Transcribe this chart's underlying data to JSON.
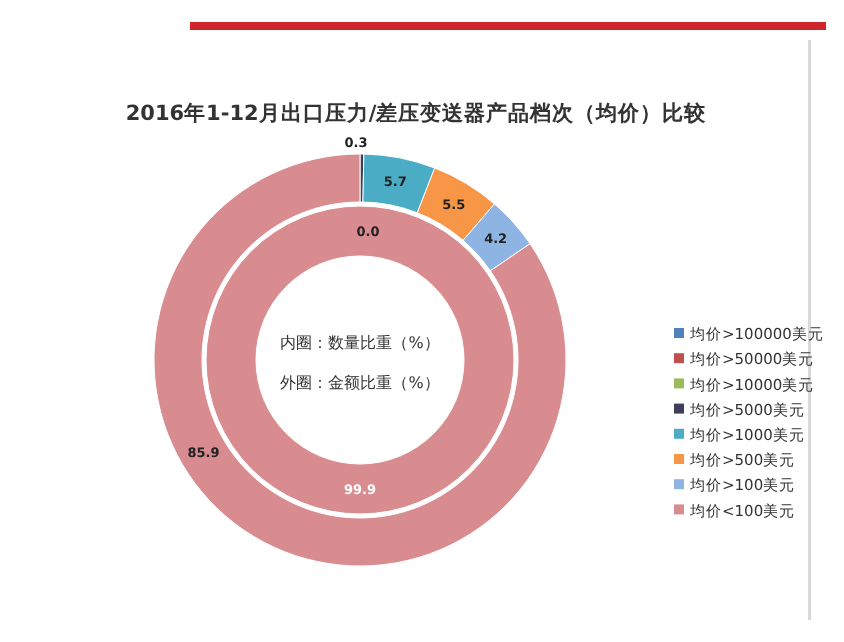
{
  "chart_data": {
    "type": "donut",
    "title": "2016年1-12月出口压力/差压变送器产品档次（均价）比较",
    "categories": [
      "均价>100000美元",
      "均价>50000美元",
      "均价>10000美元",
      "均价>5000美元",
      "均价>1000美元",
      "均价>500美元",
      "均价>100美元",
      "均价<100美元"
    ],
    "colors": [
      "#4f81bd",
      "#c0504d",
      "#9bbb59",
      "#3f3f5a",
      "#4bacc6",
      "#f79646",
      "#8eb4e3",
      "#d98c8f"
    ],
    "series": [
      {
        "values": [
          0,
          0,
          0,
          0,
          0,
          0,
          0.0,
          99.9
        ],
        "value_labels": [
          null,
          null,
          null,
          null,
          null,
          null,
          "0.0",
          "99.9"
        ]
      },
      {
        "values": [
          0,
          0,
          0,
          0.3,
          5.7,
          5.5,
          4.2,
          85.9
        ],
        "value_labels": [
          null,
          null,
          null,
          "0.3",
          "5.7",
          "5.5",
          "4.2",
          "85.9"
        ]
      }
    ],
    "annotations": [
      "内圈：数量比重（%）",
      "外圈：金额比重（%）"
    ],
    "legend": "right"
  }
}
